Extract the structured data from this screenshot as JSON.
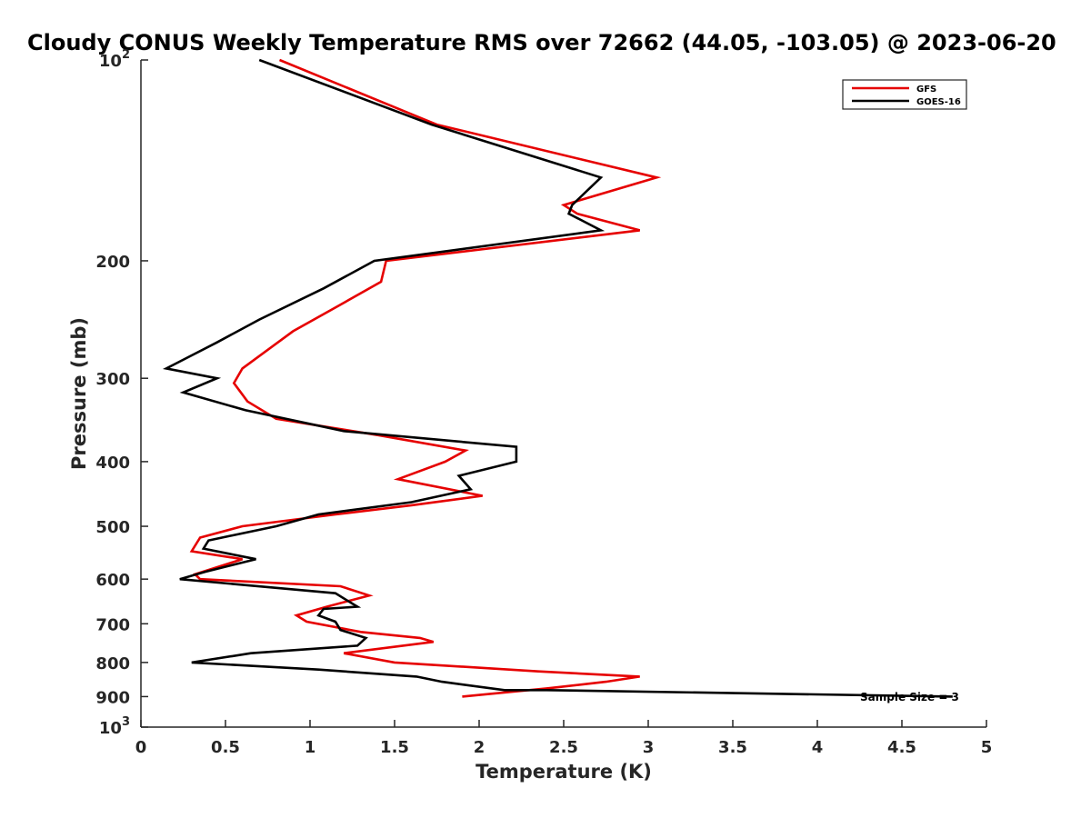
{
  "chart_data": {
    "type": "line",
    "title": "Cloudy CONUS Weekly Temperature RMS over 72662 (44.05, -103.05) @ 2023-06-20",
    "xlabel": "Temperature (K)",
    "ylabel": "Pressure (mb)",
    "xlim": [
      0,
      5
    ],
    "ylim": [
      100,
      1000
    ],
    "y_scale": "log",
    "y_reversed": true,
    "x_ticks": [
      "0",
      "0.5",
      "1",
      "1.5",
      "2",
      "2.5",
      "3",
      "3.5",
      "4",
      "4.5",
      "5"
    ],
    "y_ticks": [
      {
        "value": 100,
        "base": "10",
        "exp": "2"
      },
      {
        "value": 200,
        "label": "200"
      },
      {
        "value": 300,
        "label": "300"
      },
      {
        "value": 400,
        "label": "400"
      },
      {
        "value": 500,
        "label": "500"
      },
      {
        "value": 600,
        "label": "600"
      },
      {
        "value": 700,
        "label": "700"
      },
      {
        "value": 800,
        "label": "800"
      },
      {
        "value": 900,
        "label": "900"
      },
      {
        "value": 1000,
        "base": "10",
        "exp": "3"
      }
    ],
    "grid": false,
    "legend_position": "top-right",
    "annotation": "Sample Size = 3",
    "series": [
      {
        "name": "GFS",
        "color": "#e60000",
        "points": [
          [
            0.82,
            100
          ],
          [
            1.75,
            125
          ],
          [
            3.05,
            150
          ],
          [
            2.5,
            165
          ],
          [
            2.58,
            170
          ],
          [
            2.95,
            180
          ],
          [
            1.45,
            200
          ],
          [
            1.42,
            215
          ],
          [
            1.15,
            235
          ],
          [
            0.9,
            255
          ],
          [
            0.6,
            290
          ],
          [
            0.55,
            305
          ],
          [
            0.63,
            325
          ],
          [
            0.8,
            345
          ],
          [
            1.4,
            365
          ],
          [
            1.92,
            385
          ],
          [
            1.8,
            400
          ],
          [
            1.52,
            425
          ],
          [
            2.02,
            450
          ],
          [
            1.6,
            465
          ],
          [
            1.15,
            480
          ],
          [
            0.6,
            500
          ],
          [
            0.35,
            520
          ],
          [
            0.3,
            545
          ],
          [
            0.6,
            560
          ],
          [
            0.32,
            590
          ],
          [
            0.35,
            600
          ],
          [
            1.18,
            615
          ],
          [
            1.35,
            635
          ],
          [
            1.1,
            660
          ],
          [
            0.92,
            680
          ],
          [
            0.98,
            695
          ],
          [
            1.3,
            720
          ],
          [
            1.65,
            735
          ],
          [
            1.73,
            745
          ],
          [
            1.2,
            775
          ],
          [
            1.5,
            800
          ],
          [
            2.35,
            825
          ],
          [
            2.95,
            840
          ],
          [
            2.75,
            855
          ],
          [
            2.4,
            875
          ],
          [
            1.9,
            900
          ]
        ]
      },
      {
        "name": "GOES-16",
        "color": "#000000",
        "points": [
          [
            0.7,
            100
          ],
          [
            1.72,
            125
          ],
          [
            2.72,
            150
          ],
          [
            2.55,
            165
          ],
          [
            2.53,
            170
          ],
          [
            2.72,
            180
          ],
          [
            1.38,
            200
          ],
          [
            1.08,
            220
          ],
          [
            0.7,
            245
          ],
          [
            0.45,
            265
          ],
          [
            0.15,
            290
          ],
          [
            0.45,
            300
          ],
          [
            0.25,
            315
          ],
          [
            0.62,
            335
          ],
          [
            1.2,
            360
          ],
          [
            2.22,
            380
          ],
          [
            2.22,
            400
          ],
          [
            1.88,
            420
          ],
          [
            1.95,
            440
          ],
          [
            1.6,
            460
          ],
          [
            1.05,
            480
          ],
          [
            0.8,
            500
          ],
          [
            0.4,
            525
          ],
          [
            0.37,
            540
          ],
          [
            0.68,
            560
          ],
          [
            0.38,
            585
          ],
          [
            0.23,
            600
          ],
          [
            1.15,
            630
          ],
          [
            1.28,
            660
          ],
          [
            1.08,
            665
          ],
          [
            1.05,
            680
          ],
          [
            1.15,
            695
          ],
          [
            1.18,
            715
          ],
          [
            1.33,
            735
          ],
          [
            1.28,
            755
          ],
          [
            0.65,
            775
          ],
          [
            0.3,
            800
          ],
          [
            1.05,
            820
          ],
          [
            1.63,
            840
          ],
          [
            1.78,
            855
          ],
          [
            2.15,
            880
          ],
          [
            2.4,
            880
          ],
          [
            4.8,
            900
          ]
        ]
      }
    ]
  }
}
